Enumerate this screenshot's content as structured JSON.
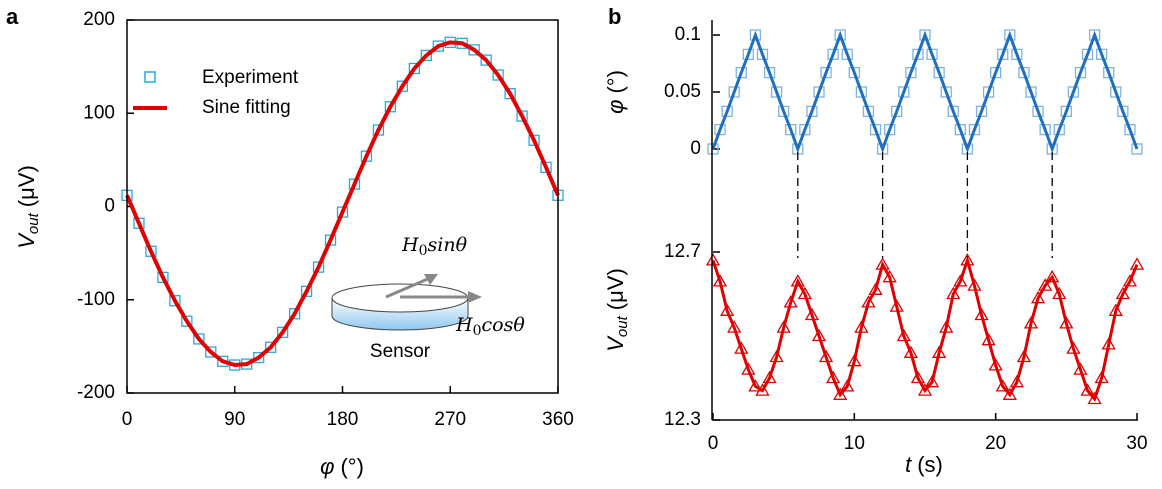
{
  "chart_data": [
    {
      "type": "scatter",
      "panel_label": "a",
      "xlabel": {
        "symbol": "φ",
        "unit": "(°)"
      },
      "ylabel": {
        "symbol": "V",
        "subscript": "out",
        "unit": "(μV)"
      },
      "xlim": [
        0,
        360
      ],
      "ylim": [
        -200,
        200
      ],
      "xticks": [
        0,
        90,
        180,
        270,
        360
      ],
      "yticks": [
        -200,
        -100,
        0,
        100,
        200
      ],
      "x": [
        0,
        10,
        20,
        30,
        40,
        50,
        60,
        70,
        80,
        90,
        100,
        110,
        120,
        130,
        140,
        150,
        160,
        170,
        180,
        190,
        200,
        210,
        220,
        230,
        240,
        250,
        260,
        270,
        280,
        290,
        300,
        310,
        320,
        330,
        340,
        350,
        360
      ],
      "series": [
        {
          "name": "Experiment",
          "mode": "markers",
          "marker": "square",
          "color": "#29a8e0",
          "values": [
            12,
            -18,
            -48,
            -76,
            -101,
            -123,
            -142,
            -156,
            -166,
            -170,
            -169,
            -162,
            -151,
            -135,
            -115,
            -91,
            -65,
            -36,
            -6,
            24,
            54,
            82,
            107,
            129,
            148,
            162,
            172,
            176,
            175,
            168,
            157,
            141,
            121,
            97,
            71,
            42,
            12
          ]
        },
        {
          "name": "Sine fitting",
          "mode": "line",
          "color": "#e00000",
          "values": [
            12,
            -18,
            -48,
            -76,
            -101,
            -123,
            -142,
            -156,
            -166,
            -170,
            -169,
            -162,
            -151,
            -135,
            -115,
            -91,
            -65,
            -36,
            -6,
            24,
            54,
            82,
            107,
            129,
            148,
            162,
            172,
            176,
            175,
            168,
            157,
            141,
            121,
            97,
            71,
            42,
            12
          ]
        }
      ],
      "annotations": {
        "h_sin": {
          "base": "H",
          "sub": "0",
          "rest": "sinθ"
        },
        "h_cos": {
          "base": "H",
          "sub": "0",
          "rest": "cosθ"
        },
        "sensor": "Sensor"
      }
    },
    {
      "type": "line",
      "panel_label": "b",
      "ylabel": {
        "symbol": "φ",
        "unit": "(°)"
      },
      "xlim": [
        0,
        30
      ],
      "ylim": [
        0,
        0.1
      ],
      "yticks": [
        0,
        0.05,
        0.1
      ],
      "guides": [
        6,
        12,
        18,
        24
      ],
      "x": [
        0,
        0.5,
        1,
        1.5,
        2,
        2.5,
        3,
        3.5,
        4,
        4.5,
        5,
        5.5,
        6,
        6.5,
        7,
        7.5,
        8,
        8.5,
        9,
        9.5,
        10,
        10.5,
        11,
        11.5,
        12,
        12.5,
        13,
        13.5,
        14,
        14.5,
        15,
        15.5,
        16,
        16.5,
        17,
        17.5,
        18,
        18.5,
        19,
        19.5,
        20,
        20.5,
        21,
        21.5,
        22,
        22.5,
        23,
        23.5,
        24,
        24.5,
        25,
        25.5,
        26,
        26.5,
        27,
        27.5,
        28,
        28.5,
        29,
        29.5,
        30
      ],
      "series": [
        {
          "mode": "line+markers",
          "marker": "square",
          "color": "#1f6fbf",
          "marker_color": "#7fb3e0",
          "values": [
            0,
            0.017,
            0.033,
            0.05,
            0.067,
            0.083,
            0.1,
            0.083,
            0.067,
            0.05,
            0.033,
            0.017,
            0,
            0.017,
            0.033,
            0.05,
            0.067,
            0.083,
            0.1,
            0.083,
            0.067,
            0.05,
            0.033,
            0.017,
            0,
            0.017,
            0.033,
            0.05,
            0.067,
            0.083,
            0.1,
            0.083,
            0.067,
            0.05,
            0.033,
            0.017,
            0,
            0.017,
            0.033,
            0.05,
            0.067,
            0.083,
            0.1,
            0.083,
            0.067,
            0.05,
            0.033,
            0.017,
            0,
            0.017,
            0.033,
            0.05,
            0.067,
            0.083,
            0.1,
            0.083,
            0.067,
            0.05,
            0.033,
            0.017,
            0
          ]
        }
      ]
    },
    {
      "type": "line",
      "xlabel": {
        "symbol": "t",
        "unit": "(s)"
      },
      "ylabel": {
        "symbol": "V",
        "subscript": "out",
        "unit": "(μV)"
      },
      "xlim": [
        0,
        30
      ],
      "ylim": [
        12.3,
        12.7
      ],
      "xticks": [
        0,
        10,
        20,
        30
      ],
      "yticks": [
        12.3,
        12.7
      ],
      "x": [
        0,
        0.5,
        1,
        1.5,
        2,
        2.5,
        3,
        3.5,
        4,
        4.5,
        5,
        5.5,
        6,
        6.5,
        7,
        7.5,
        8,
        8.5,
        9,
        9.5,
        10,
        10.5,
        11,
        11.5,
        12,
        12.5,
        13,
        13.5,
        14,
        14.5,
        15,
        15.5,
        16,
        16.5,
        17,
        17.5,
        18,
        18.5,
        19,
        19.5,
        20,
        20.5,
        21,
        21.5,
        22,
        22.5,
        23,
        23.5,
        24,
        24.5,
        25,
        25.5,
        26,
        26.5,
        27,
        27.5,
        28,
        28.5,
        29,
        29.5,
        30
      ],
      "series": [
        {
          "mode": "line+markers",
          "marker": "triangle",
          "color": "#e00000",
          "marker_color": "#e00000",
          "values": [
            12.68,
            12.63,
            12.56,
            12.52,
            12.47,
            12.42,
            12.38,
            12.37,
            12.4,
            12.45,
            12.52,
            12.58,
            12.63,
            12.6,
            12.55,
            12.5,
            12.45,
            12.4,
            12.36,
            12.38,
            12.44,
            12.52,
            12.58,
            12.61,
            12.67,
            12.64,
            12.57,
            12.5,
            12.46,
            12.4,
            12.37,
            12.39,
            12.46,
            12.52,
            12.6,
            12.63,
            12.68,
            12.62,
            12.55,
            12.49,
            12.43,
            12.38,
            12.36,
            12.39,
            12.45,
            12.53,
            12.59,
            12.62,
            12.64,
            12.6,
            12.53,
            12.47,
            12.42,
            12.37,
            12.35,
            12.4,
            12.48,
            12.56,
            12.6,
            12.63,
            12.67
          ]
        }
      ]
    }
  ]
}
